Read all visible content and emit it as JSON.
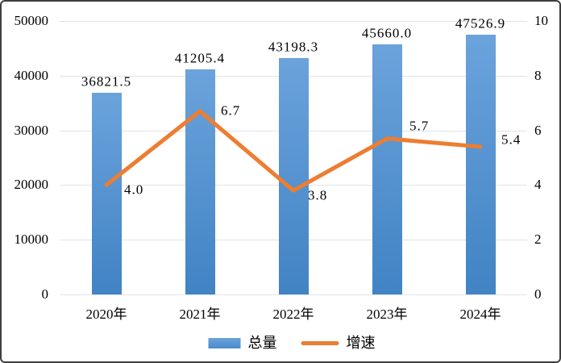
{
  "chart_data": {
    "type": "bar",
    "subtype": "bar-line-combo",
    "title": "",
    "categories": [
      "2020年",
      "2021年",
      "2022年",
      "2023年",
      "2024年"
    ],
    "series": [
      {
        "name": "总量",
        "type": "bar",
        "axis": "left",
        "values": [
          36821.5,
          41205.4,
          43198.3,
          45660.0,
          47526.9
        ],
        "labels": [
          "36821.5",
          "41205.4",
          "43198.3",
          "45660.0",
          "47526.9"
        ],
        "color_top": "#6ba3dc",
        "color_bottom": "#4183c4"
      },
      {
        "name": "增速",
        "type": "line",
        "axis": "right",
        "values": [
          4.0,
          6.7,
          3.8,
          5.7,
          5.4
        ],
        "labels": [
          "4.0",
          "6.7",
          "3.8",
          "5.7",
          "5.4"
        ],
        "color": "#ed7d31"
      }
    ],
    "left_axis": {
      "min": 0,
      "max": 50000,
      "ticks": [
        "50000",
        "40000",
        "30000",
        "20000",
        "10000",
        "0"
      ]
    },
    "right_axis": {
      "min": 0,
      "max": 10,
      "ticks": [
        "10",
        "8",
        "6",
        "4",
        "2",
        "0"
      ]
    },
    "grid": true,
    "legend_position": "bottom",
    "gridline_color": "#dee4ea",
    "background_color": "#ffffff",
    "border_color": "#3f3f3f"
  },
  "legend": {
    "items": [
      {
        "label": "总量",
        "swatch": "bar-blue"
      },
      {
        "label": "增速",
        "swatch": "line-orange"
      }
    ]
  }
}
